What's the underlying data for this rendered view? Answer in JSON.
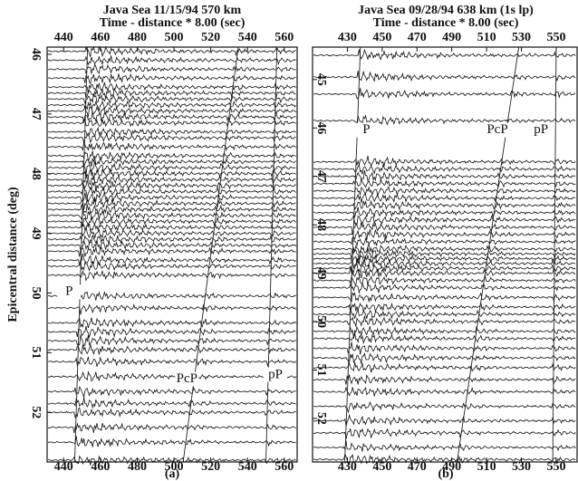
{
  "chart_data": [
    {
      "type": "record-section",
      "title": "Java Sea 11/15/94 570 km",
      "subtitle": "Time - distance * 8.00 (sec)",
      "ylabel": "Epicentral distance (deg)",
      "caption": "(a)",
      "xlim": [
        431,
        567
      ],
      "xticks": [
        440,
        460,
        480,
        500,
        520,
        540,
        560
      ],
      "ylim": [
        45.88,
        52.83
      ],
      "yticks": [
        46,
        47,
        48,
        49,
        50,
        51,
        52
      ],
      "traces": [
        45.95,
        46.1,
        46.25,
        46.4,
        46.55,
        46.65,
        46.75,
        46.85,
        46.95,
        47.05,
        47.15,
        47.3,
        47.4,
        47.55,
        47.7,
        47.8,
        47.9,
        48.0,
        48.1,
        48.2,
        48.3,
        48.4,
        48.5,
        48.6,
        48.7,
        48.8,
        48.9,
        49.0,
        49.1,
        49.2,
        49.3,
        49.45,
        49.55,
        49.7,
        50.05,
        50.25,
        50.5,
        50.65,
        50.8,
        50.95,
        51.15,
        51.4,
        51.65,
        51.85,
        52.0,
        52.25,
        52.5,
        52.8
      ],
      "phases": [
        {
          "name": "P",
          "x": [
            453,
            446
          ]
        },
        {
          "name": "PcP",
          "x": [
            535,
            505
          ]
        },
        {
          "name": "pP",
          "x": [
            556,
            550
          ]
        }
      ]
    },
    {
      "type": "record-section",
      "title": "Java Sea 09/28/94 638 km (1s lp)",
      "subtitle": "Time - distance * 8.00 (sec)",
      "caption": "(b)",
      "xlim": [
        410,
        562
      ],
      "xticks": [
        430,
        450,
        470,
        490,
        510,
        530,
        550
      ],
      "ylim": [
        44.33,
        52.9
      ],
      "yticks": [
        45,
        46,
        47,
        48,
        49,
        50,
        51,
        52
      ],
      "traces": [
        44.5,
        44.95,
        45.3,
        45.85,
        46.7,
        46.85,
        47.0,
        47.15,
        47.3,
        47.45,
        47.6,
        47.75,
        47.9,
        48.05,
        48.2,
        48.35,
        48.5,
        48.6,
        48.7,
        48.8,
        48.9,
        49.0,
        49.15,
        49.3,
        49.5,
        49.7,
        49.85,
        50.0,
        50.2,
        50.35,
        50.55,
        50.75,
        50.95,
        51.2,
        51.45,
        51.75,
        52.05,
        52.3,
        52.6,
        52.85
      ],
      "phases": [
        {
          "name": "P",
          "x": [
            437.5,
            428.5
          ]
        },
        {
          "name": "PcP",
          "x": [
            528.5,
            493
          ]
        },
        {
          "name": "pP",
          "x": [
            550,
            548
          ]
        }
      ]
    }
  ]
}
